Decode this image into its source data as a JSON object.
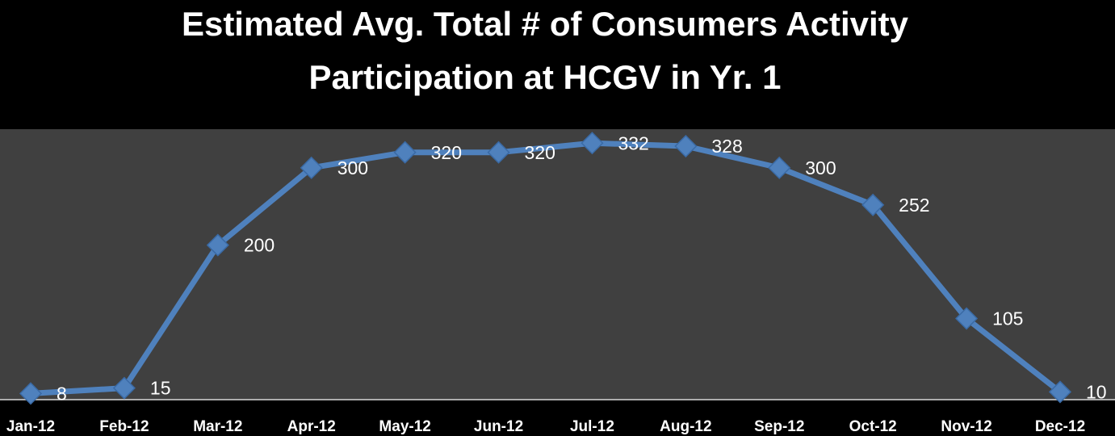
{
  "chart_data": {
    "type": "line",
    "title": [
      "Estimated Avg.  Total # of Consumers Activity",
      "Participation at HCGV in Yr. 1"
    ],
    "categories": [
      "Jan-12",
      "Feb-12",
      "Mar-12",
      "Apr-12",
      "May-12",
      "Jun-12",
      "Jul-12",
      "Aug-12",
      "Sep-12",
      "Oct-12",
      "Nov-12",
      "Dec-12"
    ],
    "values": [
      8,
      15,
      200,
      300,
      320,
      320,
      332,
      328,
      300,
      252,
      105,
      10
    ],
    "color": "#4f81bd",
    "ylim": [
      0,
      350
    ]
  }
}
